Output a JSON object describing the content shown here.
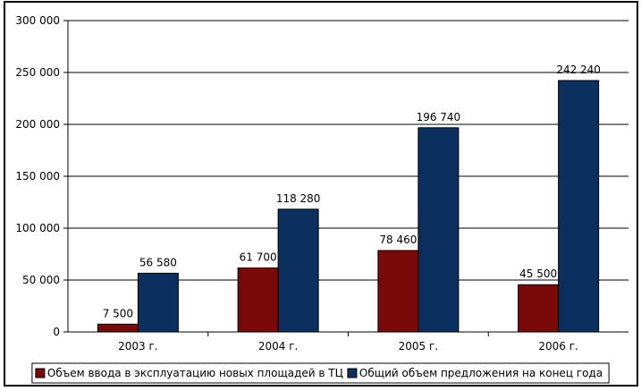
{
  "chart_data": {
    "type": "bar",
    "categories": [
      "2003 г.",
      "2004 г.",
      "2005 г.",
      "2006 г."
    ],
    "series": [
      {
        "name": "Объем ввода в эксплуатацию новых площадей в ТЦ",
        "values": [
          7500,
          61700,
          78460,
          45500
        ],
        "labels": [
          "7 500",
          "61 700",
          "78 460",
          "45 500"
        ],
        "color": "#7a0a0a"
      },
      {
        "name": "Общий объем предложения на конец года",
        "values": [
          56580,
          118280,
          196740,
          242240
        ],
        "labels": [
          "56 580",
          "118 280",
          "196 740",
          "242 240"
        ],
        "color": "#0b2f5e"
      }
    ],
    "ylim": [
      0,
      300000
    ],
    "yticks": [
      0,
      50000,
      100000,
      150000,
      200000,
      250000,
      300000
    ],
    "ytick_labels": [
      "0",
      "50 000",
      "100 000",
      "150 000",
      "200 000",
      "250 000",
      "300 000"
    ],
    "grid": true,
    "legend_position": "bottom"
  }
}
